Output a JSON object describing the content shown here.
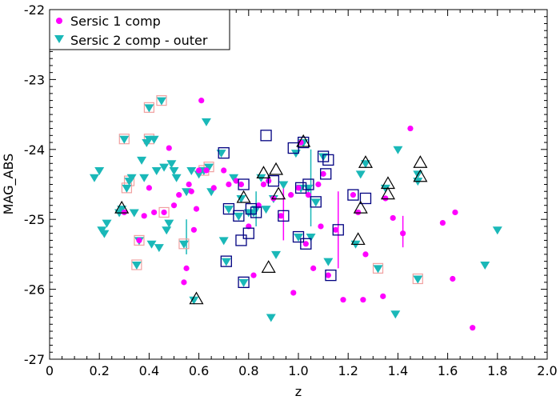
{
  "chart_data": {
    "type": "scatter",
    "xlabel": "z",
    "ylabel": "MAG_ABS",
    "xlim": [
      0,
      2.0
    ],
    "ylim": [
      -22,
      -27
    ],
    "y_inverted": true,
    "x_ticks": [
      {
        "v": 0,
        "label": "0"
      },
      {
        "v": 0.2,
        "label": "0.2"
      },
      {
        "v": 0.4,
        "label": "0.4"
      },
      {
        "v": 0.6,
        "label": "0.6"
      },
      {
        "v": 0.8,
        "label": "0.8"
      },
      {
        "v": 1.0,
        "label": "1.0"
      },
      {
        "v": 1.2,
        "label": "1.2"
      },
      {
        "v": 1.4,
        "label": "1.4"
      },
      {
        "v": 1.6,
        "label": "1.6"
      },
      {
        "v": 1.8,
        "label": "1.8"
      },
      {
        "v": 2.0,
        "label": "2.0"
      }
    ],
    "y_ticks": [
      {
        "v": -22,
        "label": "-22"
      },
      {
        "v": -23,
        "label": "-23"
      },
      {
        "v": -24,
        "label": "-24"
      },
      {
        "v": -25,
        "label": "-25"
      },
      {
        "v": -26,
        "label": "-26"
      },
      {
        "v": -27,
        "label": "-27"
      }
    ],
    "legend_position": "top-left",
    "grid": false,
    "series": [
      {
        "name": "Sersic 1 comp",
        "marker": "circle",
        "color": "#ff00ff",
        "points": [
          [
            0.3,
            -24.9
          ],
          [
            0.36,
            -25.3
          ],
          [
            0.38,
            -24.95
          ],
          [
            0.4,
            -24.55
          ],
          [
            0.42,
            -24.9
          ],
          [
            0.46,
            -24.9
          ],
          [
            0.48,
            -23.98
          ],
          [
            0.5,
            -24.8
          ],
          [
            0.52,
            -24.65
          ],
          [
            0.54,
            -25.9
          ],
          [
            0.55,
            -25.7
          ],
          [
            0.56,
            -24.5
          ],
          [
            0.57,
            -24.6
          ],
          [
            0.58,
            -25.15
          ],
          [
            0.59,
            -24.85
          ],
          [
            0.6,
            -24.3
          ],
          [
            0.61,
            -23.3
          ],
          [
            0.63,
            -24.3
          ],
          [
            0.66,
            -24.55
          ],
          [
            0.7,
            -24.3
          ],
          [
            0.72,
            -24.5
          ],
          [
            0.75,
            -24.45
          ],
          [
            0.77,
            -24.5
          ],
          [
            0.8,
            -25.1
          ],
          [
            0.82,
            -25.8
          ],
          [
            0.84,
            -24.8
          ],
          [
            0.86,
            -24.5
          ],
          [
            0.88,
            -24.45
          ],
          [
            0.9,
            -24.7
          ],
          [
            0.93,
            -24.95
          ],
          [
            0.97,
            -24.65
          ],
          [
            0.98,
            -26.05
          ],
          [
            1.0,
            -24.55
          ],
          [
            1.01,
            -23.9
          ],
          [
            1.03,
            -25.35
          ],
          [
            1.04,
            -24.65
          ],
          [
            1.06,
            -25.7
          ],
          [
            1.08,
            -24.5
          ],
          [
            1.09,
            -25.1
          ],
          [
            1.1,
            -24.35
          ],
          [
            1.12,
            -25.8
          ],
          [
            1.15,
            -25.15
          ],
          [
            1.18,
            -26.15
          ],
          [
            1.22,
            -24.65
          ],
          [
            1.24,
            -24.9
          ],
          [
            1.26,
            -26.15
          ],
          [
            1.27,
            -25.5
          ],
          [
            1.34,
            -26.1
          ],
          [
            1.35,
            -24.7
          ],
          [
            1.38,
            -24.98
          ],
          [
            1.42,
            -25.2
          ],
          [
            1.45,
            -23.7
          ],
          [
            1.58,
            -25.05
          ],
          [
            1.62,
            -25.85
          ],
          [
            1.63,
            -24.9
          ],
          [
            1.7,
            -26.55
          ]
        ],
        "vlines": [
          [
            0.94,
            -24.5,
            -25.3
          ],
          [
            1.16,
            -24.6,
            -25.7
          ],
          [
            1.42,
            -24.95,
            -25.4
          ]
        ]
      },
      {
        "name": "Sersic 2 comp - outer",
        "marker": "triangle-down",
        "color": "#1ab8b8",
        "points": [
          [
            0.18,
            -24.4
          ],
          [
            0.2,
            -24.3
          ],
          [
            0.21,
            -25.15
          ],
          [
            0.22,
            -25.2
          ],
          [
            0.23,
            -25.05
          ],
          [
            0.28,
            -24.9
          ],
          [
            0.29,
            -24.85
          ],
          [
            0.3,
            -23.85
          ],
          [
            0.31,
            -24.55
          ],
          [
            0.32,
            -24.45
          ],
          [
            0.33,
            -24.4
          ],
          [
            0.34,
            -24.9
          ],
          [
            0.35,
            -25.65
          ],
          [
            0.36,
            -25.3
          ],
          [
            0.37,
            -24.15
          ],
          [
            0.38,
            -24.4
          ],
          [
            0.39,
            -23.9
          ],
          [
            0.4,
            -23.4
          ],
          [
            0.4,
            -23.85
          ],
          [
            0.41,
            -25.35
          ],
          [
            0.42,
            -23.85
          ],
          [
            0.43,
            -24.3
          ],
          [
            0.44,
            -25.4
          ],
          [
            0.45,
            -23.3
          ],
          [
            0.46,
            -24.25
          ],
          [
            0.47,
            -25.15
          ],
          [
            0.48,
            -25.05
          ],
          [
            0.49,
            -24.2
          ],
          [
            0.5,
            -24.3
          ],
          [
            0.51,
            -24.4
          ],
          [
            0.54,
            -25.35
          ],
          [
            0.55,
            -24.6
          ],
          [
            0.57,
            -24.3
          ],
          [
            0.58,
            -26.15
          ],
          [
            0.6,
            -24.35
          ],
          [
            0.62,
            -24.3
          ],
          [
            0.63,
            -23.6
          ],
          [
            0.64,
            -24.25
          ],
          [
            0.65,
            -24.6
          ],
          [
            0.69,
            -24.05
          ],
          [
            0.7,
            -25.3
          ],
          [
            0.71,
            -25.6
          ],
          [
            0.72,
            -24.85
          ],
          [
            0.74,
            -24.4
          ],
          [
            0.76,
            -24.95
          ],
          [
            0.77,
            -24.7
          ],
          [
            0.78,
            -25.9
          ],
          [
            0.8,
            -24.9
          ],
          [
            0.82,
            -24.9
          ],
          [
            0.83,
            -24.85
          ],
          [
            0.85,
            -24.4
          ],
          [
            0.87,
            -24.85
          ],
          [
            0.89,
            -26.4
          ],
          [
            0.9,
            -24.7
          ],
          [
            0.91,
            -25.5
          ],
          [
            0.94,
            -24.5
          ],
          [
            0.99,
            -24.05
          ],
          [
            1.0,
            -25.25
          ],
          [
            1.01,
            -24.55
          ],
          [
            1.02,
            -23.9
          ],
          [
            1.04,
            -24.55
          ],
          [
            1.05,
            -25.25
          ],
          [
            1.07,
            -24.75
          ],
          [
            1.1,
            -24.1
          ],
          [
            1.12,
            -25.6
          ],
          [
            1.23,
            -25.35
          ],
          [
            1.25,
            -24.35
          ],
          [
            1.27,
            -24.2
          ],
          [
            1.32,
            -25.7
          ],
          [
            1.35,
            -24.55
          ],
          [
            1.39,
            -26.35
          ],
          [
            1.4,
            -24.0
          ],
          [
            1.48,
            -25.85
          ],
          [
            1.48,
            -24.35
          ],
          [
            1.48,
            -24.45
          ],
          [
            1.75,
            -25.65
          ],
          [
            1.8,
            -25.15
          ]
        ],
        "vlines": [
          [
            0.55,
            -25.0,
            -25.5
          ],
          [
            0.83,
            -24.6,
            -25.1
          ],
          [
            1.05,
            -24.0,
            -25.1
          ]
        ]
      }
    ],
    "markers_square_pink": [
      [
        0.3,
        -23.85
      ],
      [
        0.31,
        -24.55
      ],
      [
        0.32,
        -24.45
      ],
      [
        0.35,
        -25.65
      ],
      [
        0.36,
        -25.3
      ],
      [
        0.4,
        -23.4
      ],
      [
        0.4,
        -23.85
      ],
      [
        0.45,
        -23.3
      ],
      [
        0.46,
        -24.9
      ],
      [
        0.54,
        -25.35
      ],
      [
        0.62,
        -24.3
      ],
      [
        0.64,
        -24.25
      ],
      [
        1.32,
        -25.7
      ],
      [
        1.48,
        -25.85
      ]
    ],
    "markers_square_blue": [
      [
        0.7,
        -24.05
      ],
      [
        0.71,
        -25.6
      ],
      [
        0.72,
        -24.85
      ],
      [
        0.76,
        -24.95
      ],
      [
        0.77,
        -25.3
      ],
      [
        0.78,
        -24.5
      ],
      [
        0.78,
        -25.9
      ],
      [
        0.8,
        -25.2
      ],
      [
        0.81,
        -24.85
      ],
      [
        0.83,
        -24.9
      ],
      [
        0.87,
        -23.8
      ],
      [
        0.9,
        -24.45
      ],
      [
        0.94,
        -24.95
      ],
      [
        0.98,
        -23.98
      ],
      [
        1.0,
        -25.25
      ],
      [
        1.01,
        -24.55
      ],
      [
        1.02,
        -23.9
      ],
      [
        1.03,
        -25.35
      ],
      [
        1.04,
        -24.5
      ],
      [
        1.07,
        -24.75
      ],
      [
        1.1,
        -24.1
      ],
      [
        1.11,
        -24.35
      ],
      [
        1.12,
        -24.15
      ],
      [
        1.13,
        -25.8
      ],
      [
        1.16,
        -25.15
      ],
      [
        1.22,
        -24.65
      ],
      [
        1.27,
        -24.7
      ]
    ],
    "markers_triangle_open": [
      [
        0.29,
        -24.85
      ],
      [
        0.59,
        -26.15
      ],
      [
        0.78,
        -24.7
      ],
      [
        0.86,
        -24.35
      ],
      [
        0.88,
        -25.7
      ],
      [
        0.91,
        -24.3
      ],
      [
        0.92,
        -24.65
      ],
      [
        1.02,
        -23.9
      ],
      [
        1.24,
        -25.3
      ],
      [
        1.25,
        -24.85
      ],
      [
        1.27,
        -24.2
      ],
      [
        1.36,
        -24.5
      ],
      [
        1.36,
        -24.65
      ],
      [
        1.49,
        -24.2
      ],
      [
        1.49,
        -24.4
      ]
    ]
  }
}
